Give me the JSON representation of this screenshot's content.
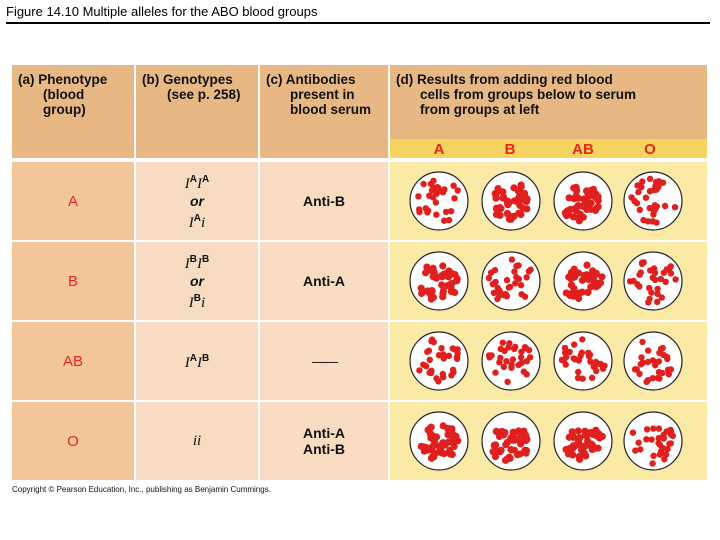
{
  "title": "Figure 14.10 Multiple alleles for the ABO blood groups",
  "headers": {
    "phenotype": [
      "(a) Phenotype",
      "(blood",
      "group)"
    ],
    "genotypes": [
      "(b) Genotypes",
      "(see p. 258)"
    ],
    "antibodies": [
      "(c) Antibodies",
      "present in",
      "blood serum"
    ],
    "results": [
      "(d) Results from adding red blood",
      "cells from groups below to serum",
      "from groups at left"
    ]
  },
  "group_labels": [
    "A",
    "B",
    "AB",
    "O"
  ],
  "rows": [
    {
      "phenotype": "A",
      "genotype_line1": "IAIA",
      "genotype_or": "or",
      "genotype_line2": "IAi",
      "antibody_line1": "Anti-B",
      "antibody_line2": "",
      "results": [
        "no-clump",
        "clump",
        "clump",
        "no-clump"
      ]
    },
    {
      "phenotype": "B",
      "genotype_line1": "IBIB",
      "genotype_or": "or",
      "genotype_line2": "IBi",
      "antibody_line1": "Anti-A",
      "antibody_line2": "",
      "results": [
        "clump",
        "no-clump",
        "clump",
        "no-clump"
      ]
    },
    {
      "phenotype": "AB",
      "genotype_line1": "IAIB",
      "genotype_or": "",
      "genotype_line2": "",
      "antibody_line1": "——",
      "antibody_line2": "",
      "results": [
        "no-clump",
        "no-clump",
        "no-clump",
        "no-clump"
      ]
    },
    {
      "phenotype": "O",
      "genotype_line1": "ii",
      "genotype_or": "",
      "genotype_line2": "",
      "antibody_line1": "Anti-A",
      "antibody_line2": "Anti-B",
      "results": [
        "clump",
        "clump",
        "clump",
        "no-clump"
      ]
    }
  ],
  "footer": "Copyright © Pearson Education, Inc., publishing as Benjamin Cummings.",
  "colors": {
    "header": "#e8b884",
    "col_a_bg": "#f2c69a",
    "col_bc_bg": "#f7dcc2",
    "col_d_bg": "#fbe9a6",
    "group_bar": "#f7d460",
    "cell_red": "#e01f1f",
    "label_red": "#e3281e"
  }
}
